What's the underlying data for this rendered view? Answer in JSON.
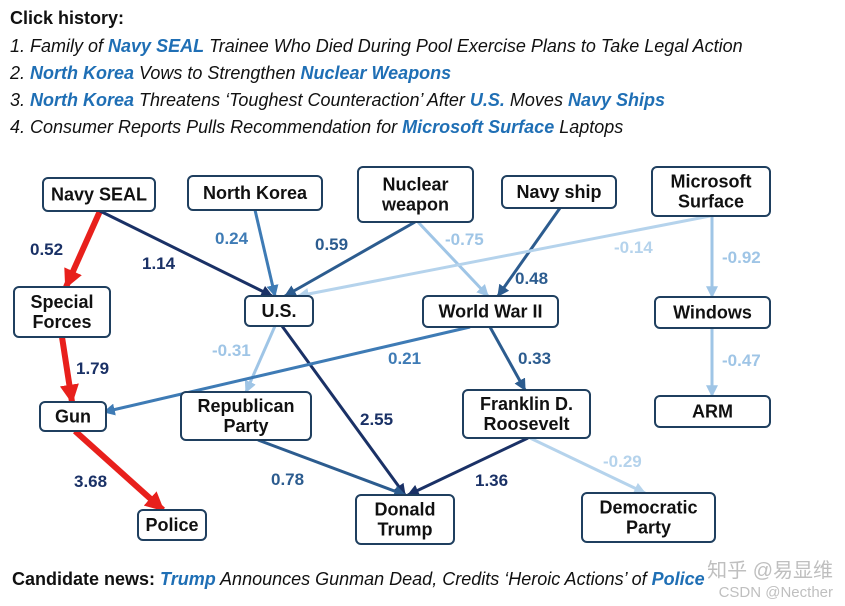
{
  "header": {
    "title": "Click history:",
    "items": [
      [
        {
          "t": "1. Family of "
        },
        {
          "t": "Navy SEAL",
          "k": true
        },
        {
          "t": " Trainee Who Died During Pool Exercise Plans to Take Legal Action"
        }
      ],
      [
        {
          "t": "2. "
        },
        {
          "t": "North Korea",
          "k": true
        },
        {
          "t": " Vows to Strengthen "
        },
        {
          "t": "Nuclear Weapons",
          "k": true
        }
      ],
      [
        {
          "t": "3. "
        },
        {
          "t": "North Korea",
          "k": true
        },
        {
          "t": " Threatens ‘Toughest Counteraction’ After "
        },
        {
          "t": "U.S.",
          "k": true
        },
        {
          "t": " Moves "
        },
        {
          "t": "Navy Ships",
          "k": true
        }
      ],
      [
        {
          "t": "4. Consumer Reports Pulls Recommendation for "
        },
        {
          "t": "Microsoft Surface",
          "k": true
        },
        {
          "t": " Laptops"
        }
      ]
    ]
  },
  "nodes": [
    {
      "id": "navy_seal",
      "label": [
        "Navy SEAL"
      ]
    },
    {
      "id": "north_korea",
      "label": [
        "North Korea"
      ]
    },
    {
      "id": "nuclear_weapon",
      "label": [
        "Nuclear",
        "weapon"
      ]
    },
    {
      "id": "navy_ship",
      "label": [
        "Navy ship"
      ]
    },
    {
      "id": "microsoft_surface",
      "label": [
        "Microsoft",
        "Surface"
      ]
    },
    {
      "id": "special_forces",
      "label": [
        "Special",
        "Forces"
      ]
    },
    {
      "id": "us",
      "label": [
        "U.S."
      ]
    },
    {
      "id": "world_war_ii",
      "label": [
        "World War II"
      ]
    },
    {
      "id": "windows",
      "label": [
        "Windows"
      ]
    },
    {
      "id": "gun",
      "label": [
        "Gun"
      ]
    },
    {
      "id": "republican_party",
      "label": [
        "Republican",
        "Party"
      ]
    },
    {
      "id": "franklin_roosevelt",
      "label": [
        "Franklin D.",
        "Roosevelt"
      ]
    },
    {
      "id": "arm",
      "label": [
        "ARM"
      ]
    },
    {
      "id": "police",
      "label": [
        "Police"
      ]
    },
    {
      "id": "donald_trump",
      "label": [
        "Donald",
        "Trump"
      ]
    },
    {
      "id": "democratic_party",
      "label": [
        "Democratic",
        "Party"
      ]
    }
  ],
  "edges": [
    {
      "from": "navy_seal",
      "to": "special_forces",
      "weight": "0.52",
      "color": "#e8201c",
      "bold": true
    },
    {
      "from": "special_forces",
      "to": "gun",
      "weight": "1.79",
      "color": "#e8201c",
      "bold": true
    },
    {
      "from": "gun",
      "to": "police",
      "weight": "3.68",
      "color": "#e8201c",
      "bold": true
    },
    {
      "from": "navy_seal",
      "to": "us",
      "weight": "1.14",
      "color": "#1a3166"
    },
    {
      "from": "north_korea",
      "to": "us",
      "weight": "0.24",
      "color": "#3e7bb5"
    },
    {
      "from": "nuclear_weapon",
      "to": "us",
      "weight": "0.59",
      "color": "#2c5c8f"
    },
    {
      "from": "nuclear_weapon",
      "to": "world_war_ii",
      "weight": "-0.75",
      "color": "#9fc5e6"
    },
    {
      "from": "navy_ship",
      "to": "world_war_ii",
      "weight": "0.48",
      "color": "#2c5c8f"
    },
    {
      "from": "microsoft_surface",
      "to": "us",
      "weight": "-0.14",
      "color": "#b5d3ec"
    },
    {
      "from": "microsoft_surface",
      "to": "windows",
      "weight": "-0.92",
      "color": "#9fc5e6"
    },
    {
      "from": "windows",
      "to": "arm",
      "weight": "-0.47",
      "color": "#9fc5e6"
    },
    {
      "from": "us",
      "to": "republican_party",
      "weight": "-0.31",
      "color": "#9fc5e6"
    },
    {
      "from": "us",
      "to": "donald_trump",
      "weight": "2.55",
      "color": "#1a3166"
    },
    {
      "from": "world_war_ii",
      "to": "gun",
      "weight": "0.21",
      "color": "#3e7bb5"
    },
    {
      "from": "world_war_ii",
      "to": "franklin_roosevelt",
      "weight": "0.33",
      "color": "#2c5c8f"
    },
    {
      "from": "republican_party",
      "to": "donald_trump",
      "weight": "0.78",
      "color": "#2c5c8f"
    },
    {
      "from": "franklin_roosevelt",
      "to": "donald_trump",
      "weight": "1.36",
      "color": "#1a3166"
    },
    {
      "from": "franklin_roosevelt",
      "to": "democratic_party",
      "weight": "-0.29",
      "color": "#b5d3ec"
    }
  ],
  "footer": {
    "label": "Candidate news:",
    "parts": [
      {
        "t": " "
      },
      {
        "t": "Trump",
        "k": true
      },
      {
        "t": " Announces Gunman Dead, Credits ‘Heroic Actions’ of "
      },
      {
        "t": "Police",
        "k": true
      }
    ]
  },
  "watermark": {
    "line1": "知乎 @易显维",
    "line2": "CSDN @Necther"
  }
}
